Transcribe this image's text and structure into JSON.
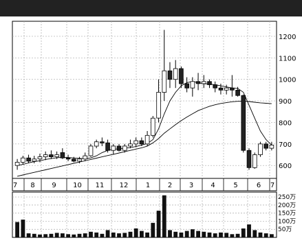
{
  "header": {
    "title": ""
  },
  "chart_data": {
    "type": "candlestick",
    "price_axis": {
      "ylim": [
        540,
        1270
      ],
      "ticks": [
        600,
        700,
        800,
        900,
        1000,
        1100,
        1200
      ]
    },
    "volume_axis": {
      "unit_suffix": "万",
      "ylim": [
        0,
        280
      ],
      "ticks": [
        50,
        100,
        150,
        200,
        250
      ]
    },
    "month_labels": [
      "7",
      "8",
      "9",
      "10",
      "11",
      "12",
      "1",
      "2",
      "3",
      "4",
      "5",
      "6",
      "7"
    ],
    "candles": [
      {
        "o": 600,
        "h": 630,
        "l": 580,
        "c": 615
      },
      {
        "o": 615,
        "h": 645,
        "l": 605,
        "c": 635
      },
      {
        "o": 635,
        "h": 650,
        "l": 610,
        "c": 620
      },
      {
        "o": 620,
        "h": 645,
        "l": 610,
        "c": 630
      },
      {
        "o": 630,
        "h": 655,
        "l": 615,
        "c": 640
      },
      {
        "o": 640,
        "h": 665,
        "l": 625,
        "c": 650
      },
      {
        "o": 650,
        "h": 670,
        "l": 630,
        "c": 640
      },
      {
        "o": 640,
        "h": 665,
        "l": 630,
        "c": 650
      },
      {
        "o": 660,
        "h": 680,
        "l": 630,
        "c": 635
      },
      {
        "o": 635,
        "h": 650,
        "l": 620,
        "c": 630
      },
      {
        "o": 630,
        "h": 640,
        "l": 615,
        "c": 620
      },
      {
        "o": 620,
        "h": 640,
        "l": 610,
        "c": 630
      },
      {
        "o": 630,
        "h": 660,
        "l": 620,
        "c": 645
      },
      {
        "o": 645,
        "h": 700,
        "l": 640,
        "c": 690
      },
      {
        "o": 690,
        "h": 720,
        "l": 680,
        "c": 710
      },
      {
        "o": 710,
        "h": 730,
        "l": 690,
        "c": 705
      },
      {
        "o": 705,
        "h": 720,
        "l": 660,
        "c": 670
      },
      {
        "o": 670,
        "h": 700,
        "l": 650,
        "c": 690
      },
      {
        "o": 690,
        "h": 700,
        "l": 665,
        "c": 670
      },
      {
        "o": 670,
        "h": 700,
        "l": 660,
        "c": 690
      },
      {
        "o": 690,
        "h": 720,
        "l": 680,
        "c": 700
      },
      {
        "o": 700,
        "h": 730,
        "l": 685,
        "c": 715
      },
      {
        "o": 715,
        "h": 730,
        "l": 690,
        "c": 700
      },
      {
        "o": 700,
        "h": 760,
        "l": 690,
        "c": 740
      },
      {
        "o": 740,
        "h": 830,
        "l": 730,
        "c": 820
      },
      {
        "o": 820,
        "h": 1000,
        "l": 800,
        "c": 940
      },
      {
        "o": 940,
        "h": 1230,
        "l": 900,
        "c": 1040
      },
      {
        "o": 1040,
        "h": 1080,
        "l": 960,
        "c": 1000
      },
      {
        "o": 1000,
        "h": 1090,
        "l": 960,
        "c": 1050
      },
      {
        "o": 1050,
        "h": 1060,
        "l": 960,
        "c": 980
      },
      {
        "o": 980,
        "h": 1010,
        "l": 940,
        "c": 960
      },
      {
        "o": 960,
        "h": 1010,
        "l": 920,
        "c": 990
      },
      {
        "o": 990,
        "h": 1030,
        "l": 950,
        "c": 980
      },
      {
        "o": 980,
        "h": 1020,
        "l": 960,
        "c": 990
      },
      {
        "o": 990,
        "h": 1000,
        "l": 960,
        "c": 975
      },
      {
        "o": 975,
        "h": 990,
        "l": 940,
        "c": 960
      },
      {
        "o": 960,
        "h": 980,
        "l": 930,
        "c": 950
      },
      {
        "o": 950,
        "h": 975,
        "l": 930,
        "c": 960
      },
      {
        "o": 960,
        "h": 1020,
        "l": 920,
        "c": 950
      },
      {
        "o": 950,
        "h": 965,
        "l": 920,
        "c": 925
      },
      {
        "o": 925,
        "h": 930,
        "l": 660,
        "c": 670
      },
      {
        "o": 670,
        "h": 680,
        "l": 580,
        "c": 590
      },
      {
        "o": 590,
        "h": 660,
        "l": 585,
        "c": 650
      },
      {
        "o": 650,
        "h": 710,
        "l": 640,
        "c": 700
      },
      {
        "o": 700,
        "h": 710,
        "l": 670,
        "c": 680
      },
      {
        "o": 680,
        "h": 710,
        "l": 670,
        "c": 695
      }
    ],
    "ma_short": [
      600,
      605,
      612,
      618,
      622,
      628,
      632,
      636,
      638,
      637,
      635,
      633,
      632,
      635,
      645,
      660,
      670,
      675,
      678,
      680,
      683,
      688,
      695,
      702,
      720,
      770,
      840,
      900,
      940,
      970,
      985,
      990,
      985,
      980,
      978,
      975,
      970,
      965,
      960,
      958,
      940,
      880,
      820,
      760,
      720,
      695
    ],
    "ma_long": [
      550,
      556,
      562,
      568,
      574,
      580,
      586,
      592,
      598,
      604,
      610,
      616,
      622,
      628,
      634,
      640,
      646,
      652,
      658,
      664,
      670,
      676,
      682,
      690,
      705,
      725,
      750,
      770,
      790,
      808,
      825,
      840,
      855,
      865,
      875,
      882,
      888,
      892,
      896,
      898,
      899,
      897,
      894,
      891,
      889,
      887
    ],
    "volume": [
      95,
      110,
      25,
      22,
      18,
      20,
      22,
      28,
      25,
      20,
      18,
      22,
      25,
      35,
      30,
      22,
      45,
      30,
      25,
      28,
      35,
      55,
      40,
      30,
      90,
      165,
      260,
      45,
      35,
      30,
      40,
      50,
      40,
      35,
      30,
      25,
      30,
      28,
      20,
      22,
      55,
      80,
      45,
      30,
      25,
      20
    ]
  }
}
